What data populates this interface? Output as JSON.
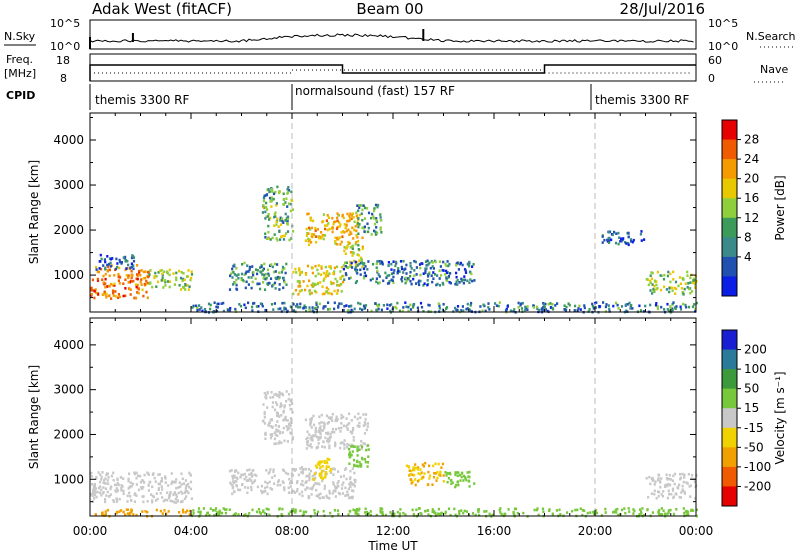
{
  "header": {
    "title": "Adak West (fitACF)",
    "beam": "Beam 00",
    "date": "28/Jul/2016"
  },
  "top_panels": {
    "nsky_label": "N.Sky",
    "nsky_ticks": [
      "10^5",
      "10^0"
    ],
    "nsearch_label": "N.Search",
    "freq_label": "Freq.",
    "freq_unit": "[MHz]",
    "freq_ticks": [
      "18",
      "8"
    ],
    "nave_ticks": [
      "60",
      "0"
    ],
    "nave_label": "Nave",
    "cpid_label": "CPID",
    "cpid_segments": [
      {
        "label": "themis 3300 RF",
        "start_hour": 0,
        "end_hour": 8
      },
      {
        "label": "normalsound (fast) 157 RF",
        "start_hour": 8,
        "end_hour": 20
      },
      {
        "label": "themis 3300 RF",
        "start_hour": 20,
        "end_hour": 24
      }
    ]
  },
  "colorbars": {
    "power": {
      "label": "Power [dB]",
      "ticks": [
        "28",
        "24",
        "20",
        "16",
        "12",
        "8",
        "4"
      ],
      "colors": [
        "#e60000",
        "#f05a00",
        "#f59a00",
        "#e8c800",
        "#8fcf3c",
        "#3c9a5a",
        "#3a8a8a",
        "#2050b0",
        "#0a1ee6"
      ]
    },
    "velocity": {
      "label": "Velocity [m s⁻¹]",
      "ticks": [
        "200",
        "100",
        "50",
        "15",
        "-15",
        "-50",
        "-100",
        "-200"
      ],
      "colors": [
        "#1a1ed2",
        "#2a7a9a",
        "#3c9a3c",
        "#78c83c",
        "#c8c8c8",
        "#f0d200",
        "#f0a000",
        "#f05a00",
        "#e60000"
      ]
    }
  },
  "chart_data": [
    {
      "type": "heatmap",
      "title": "",
      "quantity": "Power [dB]",
      "xlabel": "Time UT",
      "ylabel": "Slant Range [km]",
      "xlim_hours": [
        0,
        24
      ],
      "ylim": [
        180,
        4600
      ],
      "x_tick_labels": [
        "00:00",
        "04:00",
        "08:00",
        "12:00",
        "16:00",
        "20:00",
        "00:00"
      ],
      "y_tick_labels": [
        "1000",
        "2000",
        "3000",
        "4000"
      ],
      "dashed_time_markers_hours": [
        8,
        20
      ],
      "regions": [
        {
          "t": [
            0.0,
            2.3
          ],
          "r": [
            500,
            1250
          ],
          "value": 24
        },
        {
          "t": [
            2.3,
            4.0
          ],
          "r": [
            700,
            1150
          ],
          "value": 14
        },
        {
          "t": [
            0.2,
            1.8
          ],
          "r": [
            1150,
            1500
          ],
          "value": 6
        },
        {
          "t": [
            5.5,
            7.8
          ],
          "r": [
            700,
            1300
          ],
          "value": 10
        },
        {
          "t": [
            6.8,
            8.0
          ],
          "r": [
            1800,
            3000
          ],
          "value": 12
        },
        {
          "t": [
            8.0,
            10.0
          ],
          "r": [
            600,
            1250
          ],
          "value": 18
        },
        {
          "t": [
            8.5,
            10.8
          ],
          "r": [
            1700,
            2400
          ],
          "value": 20
        },
        {
          "t": [
            10.0,
            10.8
          ],
          "r": [
            1200,
            1700
          ],
          "value": 16
        },
        {
          "t": [
            10.5,
            11.5
          ],
          "r": [
            1900,
            2600
          ],
          "value": 10
        },
        {
          "t": [
            10.0,
            15.2
          ],
          "r": [
            800,
            1350
          ],
          "value": 8
        },
        {
          "t": [
            20.2,
            22.0
          ],
          "r": [
            1700,
            2000
          ],
          "value": 6
        },
        {
          "t": [
            22.0,
            24.0
          ],
          "r": [
            600,
            1100
          ],
          "value": 14
        },
        {
          "t": [
            4.0,
            24.0
          ],
          "r": [
            200,
            420
          ],
          "value": 8
        }
      ]
    },
    {
      "type": "heatmap",
      "title": "",
      "quantity": "Velocity [m s⁻¹]",
      "xlabel": "Time UT",
      "ylabel": "Slant Range [km]",
      "xlim_hours": [
        0,
        24
      ],
      "ylim": [
        180,
        4600
      ],
      "x_tick_labels": [
        "00:00",
        "04:00",
        "08:00",
        "12:00",
        "16:00",
        "20:00",
        "00:00"
      ],
      "y_tick_labels": [
        "1000",
        "2000",
        "3000",
        "4000"
      ],
      "dashed_time_markers_hours": [
        8,
        20
      ],
      "regions": [
        {
          "t": [
            0.0,
            4.0
          ],
          "r": [
            500,
            1200
          ],
          "value": 0
        },
        {
          "t": [
            5.5,
            8.0
          ],
          "r": [
            700,
            1250
          ],
          "value": 0
        },
        {
          "t": [
            6.8,
            8.0
          ],
          "r": [
            1800,
            3000
          ],
          "value": 0
        },
        {
          "t": [
            8.0,
            10.5
          ],
          "r": [
            600,
            1300
          ],
          "value": 0
        },
        {
          "t": [
            8.5,
            11.0
          ],
          "r": [
            1700,
            2500
          ],
          "value": 0
        },
        {
          "t": [
            8.8,
            9.5
          ],
          "r": [
            1000,
            1500
          ],
          "value": -40
        },
        {
          "t": [
            10.2,
            11.0
          ],
          "r": [
            1300,
            1800
          ],
          "value": 30
        },
        {
          "t": [
            12.5,
            14.0
          ],
          "r": [
            900,
            1400
          ],
          "value": -50
        },
        {
          "t": [
            14.0,
            15.2
          ],
          "r": [
            850,
            1200
          ],
          "value": 40
        },
        {
          "t": [
            22.0,
            24.0
          ],
          "r": [
            600,
            1150
          ],
          "value": 0
        },
        {
          "t": [
            4.0,
            24.0
          ],
          "r": [
            200,
            380
          ],
          "value": 30
        },
        {
          "t": [
            0.0,
            4.0
          ],
          "r": [
            200,
            350
          ],
          "value": -60
        }
      ]
    }
  ]
}
